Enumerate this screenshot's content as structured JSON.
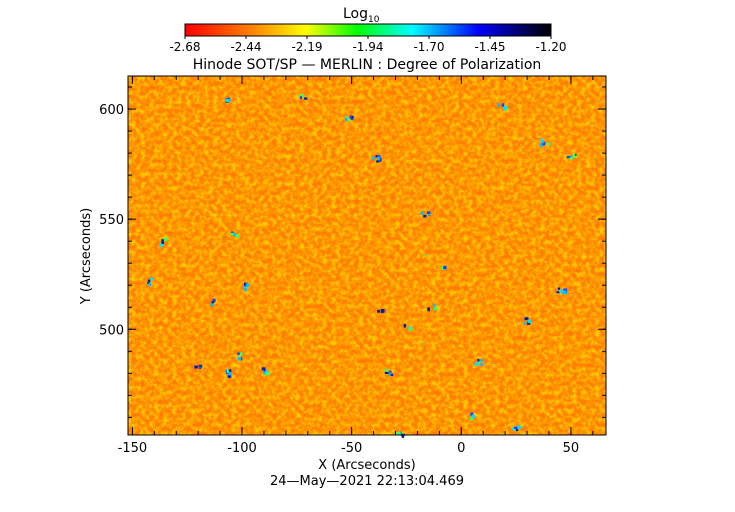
{
  "colorbar": {
    "label_main": "Log",
    "label_sub": "10",
    "ticks": [
      "-2.68",
      "-2.44",
      "-2.19",
      "-1.94",
      "-1.70",
      "-1.45",
      "-1.20"
    ],
    "colors": [
      "#ff0000",
      "#ff8000",
      "#ffff00",
      "#00ff00",
      "#00ffff",
      "#0000ff",
      "#000000"
    ]
  },
  "image": {
    "title": "Hinode SOT/SP — MERLIN : Degree of Polarization",
    "x_axis_label": "X (Arcseconds)",
    "y_axis_label": "Y (Arcseconds)",
    "x_ticks": [
      "-150",
      "-100",
      "-50",
      "0",
      "50"
    ],
    "y_ticks": [
      "500",
      "550",
      "600"
    ],
    "x_range": [
      -152,
      66
    ],
    "y_range": [
      452,
      615
    ],
    "timestamp": "24—May—2021 22:13:04.469",
    "dominant_colors": [
      "#ff3300",
      "#ff8800",
      "#ffee00",
      "#33ff66",
      "#00aaff",
      "#000033"
    ]
  }
}
